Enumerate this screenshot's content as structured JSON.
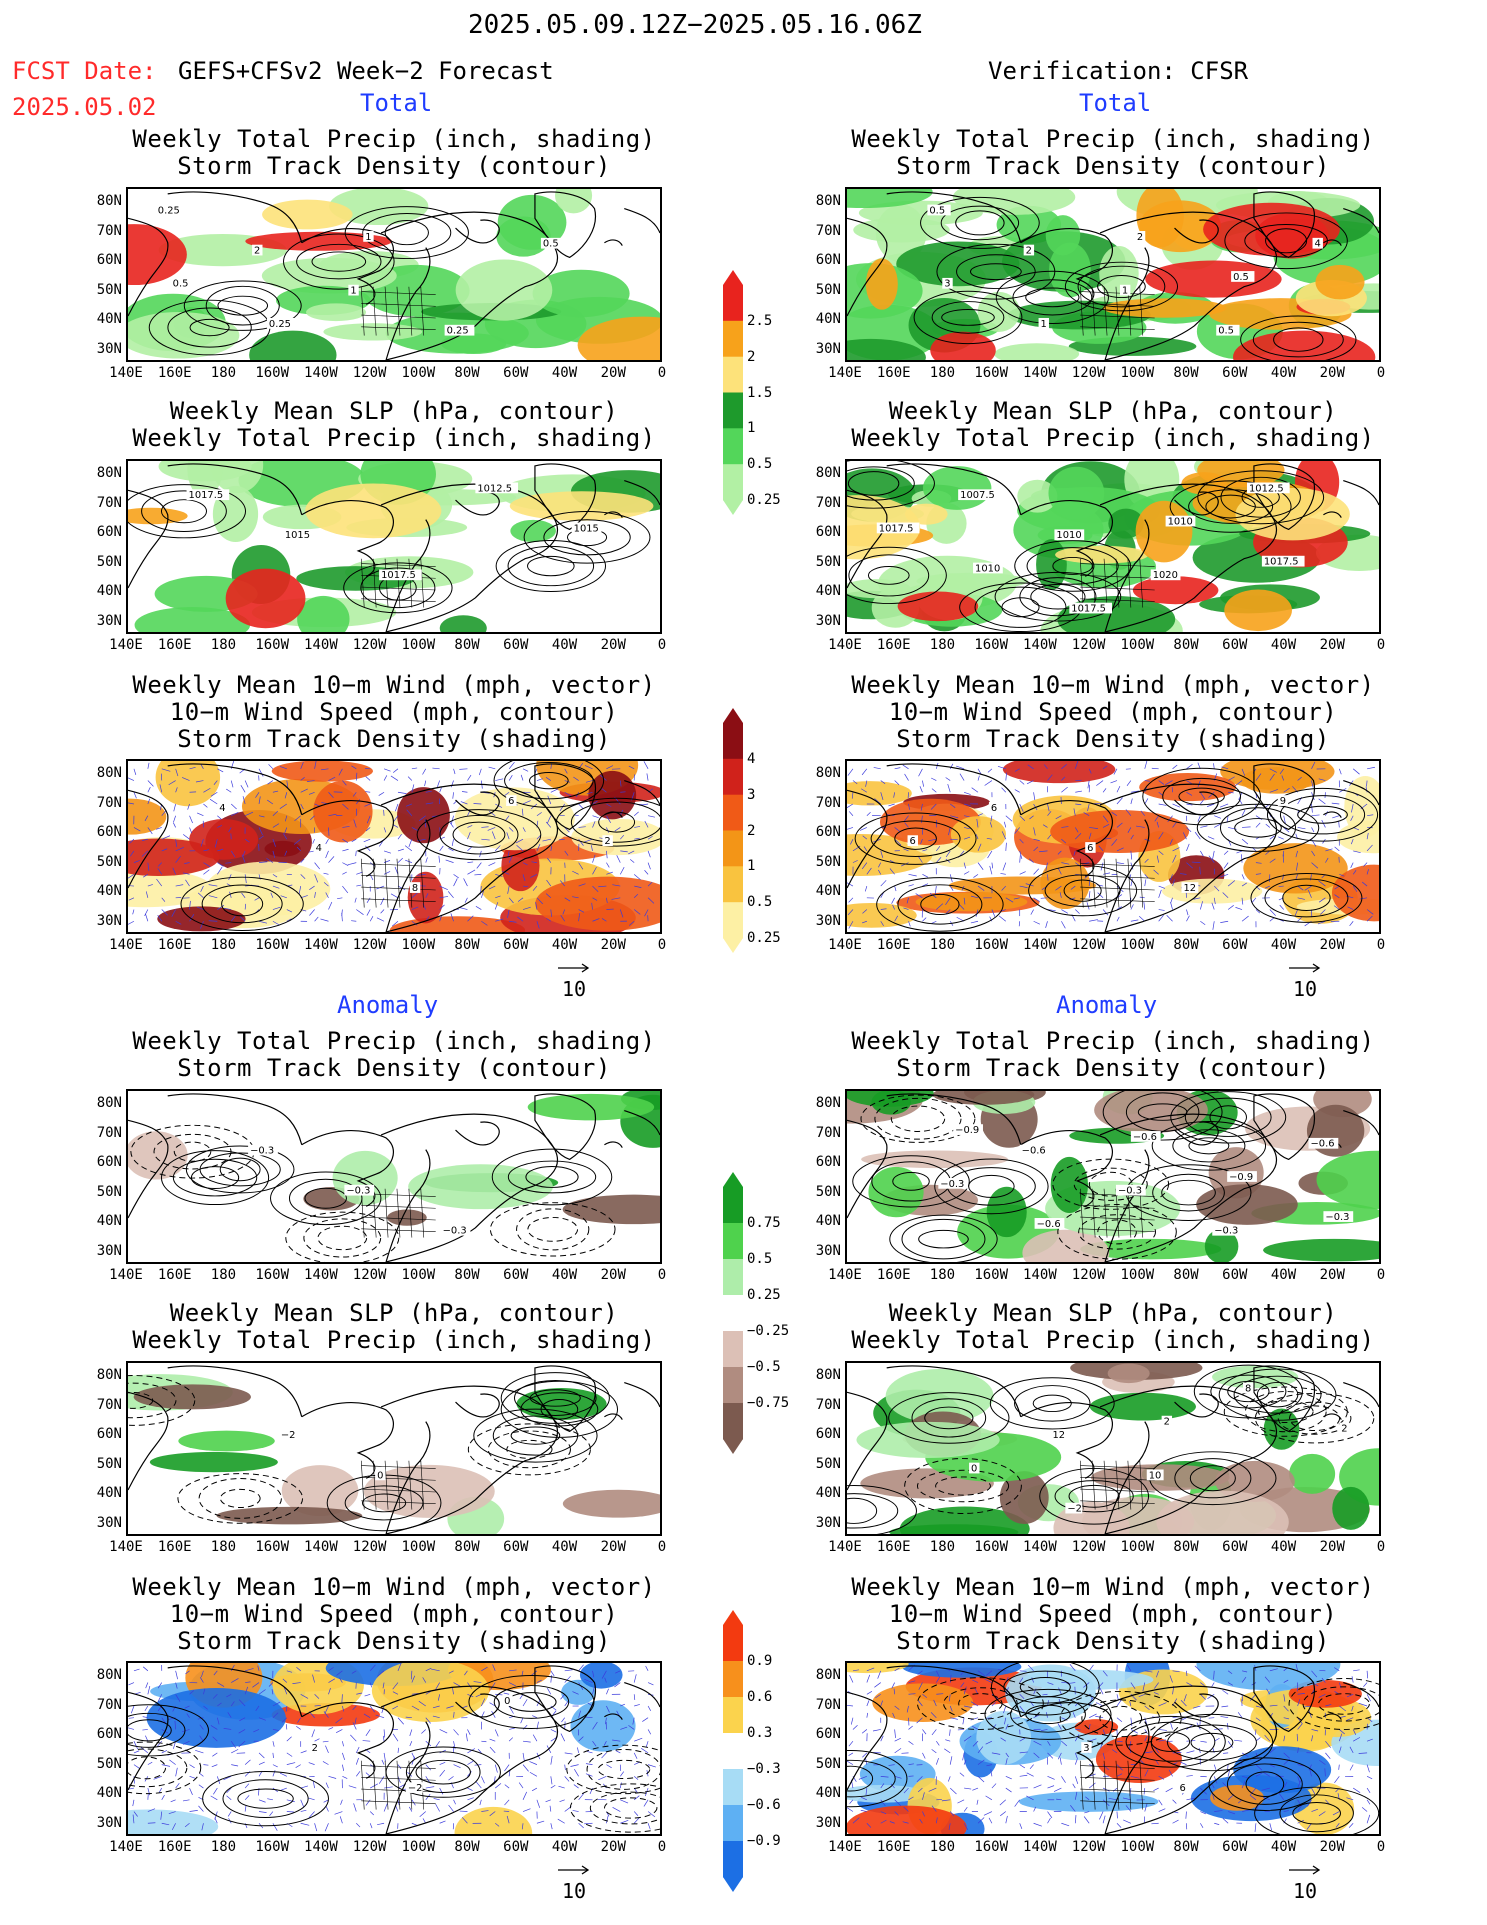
{
  "header": {
    "period": "2025.05.09.12Z−2025.05.16.06Z",
    "fcst_label": "FCST Date:",
    "fcst_model": "GEFS+CFSv2 Week−2 Forecast",
    "fcst_date": "2025.05.02",
    "verification": "Verification: CFSR"
  },
  "sections": {
    "total": "Total",
    "anomaly": "Anomaly"
  },
  "titles": {
    "precip_storm": [
      "Weekly Total Precip (inch, shading)",
      "Storm Track Density (contour)"
    ],
    "slp_precip": [
      "Weekly Mean SLP (hPa, contour)",
      "Weekly Total Precip (inch, shading)"
    ],
    "wind": [
      "Weekly Mean 10−m Wind (mph, vector)",
      "10−m Wind Speed (mph, contour)",
      "Storm Track Density (shading)"
    ]
  },
  "axes": {
    "lat_labels": [
      "80N",
      "70N",
      "60N",
      "50N",
      "40N",
      "30N"
    ],
    "lon_labels": [
      "140E",
      "160E",
      "180",
      "160W",
      "140W",
      "120W",
      "100W",
      "80W",
      "60W",
      "40W",
      "20W",
      "0"
    ]
  },
  "vector_reference": "10",
  "colorbars": {
    "total_precip": {
      "labels": [
        "2.5",
        "2",
        "1.5",
        "1",
        "0.5",
        "0.25"
      ],
      "colors": [
        "#e8231e",
        "#f7a21b",
        "#fde27a",
        "#1e9a2c",
        "#53d65a",
        "#b2f0a4"
      ]
    },
    "total_storm": {
      "labels": [
        "4",
        "3",
        "2",
        "1",
        "0.5",
        "0.25"
      ],
      "colors": [
        "#8b0e14",
        "#d0221b",
        "#f05a17",
        "#f39517",
        "#f9c33f",
        "#fdf0a4"
      ]
    },
    "anom_precip": {
      "labels": [
        "0.75",
        "0.5",
        "0.25",
        "−0.25",
        "−0.5",
        "−0.75"
      ],
      "colors": [
        "#179c25",
        "#4fd24d",
        "#aeedaa",
        "#ffffff",
        "#dcc0b6",
        "#b08c80",
        "#7c5a4f"
      ]
    },
    "anom_storm": {
      "labels": [
        "0.9",
        "0.6",
        "0.3",
        "−0.3",
        "−0.6",
        "−0.9"
      ],
      "colors": [
        "#f33a10",
        "#f7901c",
        "#fbd34d",
        "#ffffff",
        "#a7dcf5",
        "#5eb0f3",
        "#1c6fe4"
      ]
    }
  },
  "panel_labels": {
    "fc_total_precip": [
      "0.25",
      "2",
      "1",
      "0.25",
      "0.5",
      "0.5",
      "0.25",
      "1"
    ],
    "ver_total_precip": [
      "0.5",
      "2",
      "1",
      "0.5",
      "4",
      "3",
      "1",
      "2",
      "0.5"
    ],
    "fc_total_slp": [
      "1017.5",
      "1015",
      "1017.5",
      "1012.5",
      "1015"
    ],
    "ver_total_slp": [
      "1007.5",
      "1010",
      "1020",
      "1012.5",
      "1017.5",
      "1010",
      "1017.5",
      "1010",
      "1017.5"
    ],
    "fc_total_wind": [
      "4",
      "4",
      "8",
      "6",
      "2"
    ],
    "ver_total_wind": [
      "6",
      "6",
      "12",
      "9",
      "6"
    ],
    "fc_anom_precip": [
      "−0.3",
      "−0.3",
      "−0.3"
    ],
    "ver_anom_precip": [
      "−0.6",
      "−0.3",
      "−0.3",
      "−0.6",
      "−0.3",
      "−0.6",
      "−0.6",
      "−0.9",
      "−0.3",
      "−0.9"
    ],
    "fc_anom_slp": [
      "−2",
      "0"
    ],
    "ver_anom_slp": [
      "12",
      "10",
      "8",
      "2",
      "0",
      "−2",
      "2"
    ],
    "fc_anom_wind": [
      "2",
      "−2",
      "0"
    ],
    "ver_anom_wind": [
      "3",
      "6"
    ]
  }
}
